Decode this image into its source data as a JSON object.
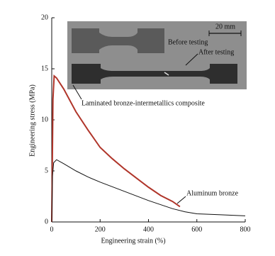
{
  "chart_data": {
    "type": "line",
    "x_label": "Engineering strain (%)",
    "y_label": "Engineering stress (MPa)",
    "xlim": [
      0,
      800
    ],
    "xticks": [
      0,
      200,
      400,
      600,
      800
    ],
    "ylim": [
      0,
      20
    ],
    "yticks": [
      0,
      5,
      10,
      15,
      20
    ],
    "series": [
      {
        "name": "Laminated bronze-intermetallics composite",
        "color": "#b0352a",
        "x": [
          0,
          5,
          10,
          20,
          50,
          100,
          150,
          200,
          250,
          300,
          350,
          400,
          450,
          500,
          530
        ],
        "values": [
          0,
          12,
          14.3,
          14.1,
          13,
          10.8,
          9,
          7.3,
          6.2,
          5.2,
          4.3,
          3.4,
          2.6,
          2.0,
          1.5
        ]
      },
      {
        "name": "Aluminum bronze",
        "color": "#111111",
        "x": [
          0,
          3,
          8,
          20,
          50,
          100,
          150,
          200,
          300,
          400,
          500,
          550,
          600,
          700,
          800
        ],
        "values": [
          0,
          4.5,
          5.8,
          6.1,
          5.7,
          5.0,
          4.4,
          3.9,
          3.0,
          2.1,
          1.3,
          1.0,
          0.8,
          0.7,
          0.6
        ]
      }
    ],
    "annotations": [
      "Before testing",
      "After testing",
      "20 mm"
    ]
  }
}
